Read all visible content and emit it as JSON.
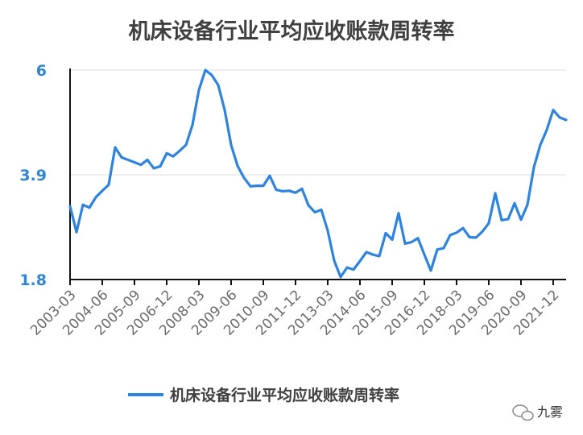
{
  "chart_data": {
    "type": "line",
    "title": "机床设备行业平均应收账款周转率",
    "xlabel": "",
    "ylabel": "",
    "ylim": [
      1.8,
      6.0
    ],
    "yticks": [
      "1.8",
      "3.9",
      "6"
    ],
    "grid": true,
    "legend_position": "bottom",
    "categories": [
      "2003-03",
      "2003-06",
      "2003-09",
      "2003-12",
      "2004-03",
      "2004-06",
      "2004-09",
      "2004-12",
      "2005-03",
      "2005-06",
      "2005-09",
      "2005-12",
      "2006-03",
      "2006-06",
      "2006-09",
      "2006-12",
      "2007-03",
      "2007-06",
      "2007-09",
      "2007-12",
      "2008-03",
      "2008-06",
      "2008-09",
      "2008-12",
      "2009-03",
      "2009-06",
      "2009-09",
      "2009-12",
      "2010-03",
      "2010-06",
      "2010-09",
      "2010-12",
      "2011-03",
      "2011-06",
      "2011-09",
      "2011-12",
      "2012-03",
      "2012-06",
      "2012-09",
      "2012-12",
      "2013-03",
      "2013-06",
      "2013-09",
      "2013-12",
      "2014-03",
      "2014-06",
      "2014-09",
      "2014-12",
      "2015-03",
      "2015-06",
      "2015-09",
      "2015-12",
      "2016-03",
      "2016-06",
      "2016-09",
      "2016-12",
      "2017-03",
      "2017-06",
      "2017-09",
      "2017-12",
      "2018-03",
      "2018-06",
      "2018-09",
      "2018-12",
      "2019-03",
      "2019-06",
      "2019-09",
      "2019-12",
      "2020-03",
      "2020-06",
      "2020-09",
      "2020-12",
      "2021-03",
      "2021-06",
      "2021-09",
      "2021-12",
      "2022-03",
      "2022-06"
    ],
    "xticks": [
      "2003-03",
      "2004-06",
      "2005-09",
      "2006-12",
      "2008-03",
      "2009-06",
      "2010-09",
      "2011-12",
      "2013-03",
      "2014-06",
      "2015-09",
      "2016-12",
      "2018-03",
      "2019-06",
      "2020-09",
      "2021-12"
    ],
    "series": [
      {
        "name": "机床设备行业平均应收账款周转率",
        "color": "#2d83df",
        "values": [
          3.27,
          2.75,
          3.3,
          3.24,
          3.45,
          3.58,
          3.7,
          4.45,
          4.25,
          4.2,
          4.15,
          4.1,
          4.2,
          4.03,
          4.07,
          4.33,
          4.27,
          4.38,
          4.5,
          4.9,
          5.6,
          6.0,
          5.9,
          5.7,
          5.2,
          4.5,
          4.08,
          3.84,
          3.67,
          3.68,
          3.68,
          3.88,
          3.6,
          3.57,
          3.58,
          3.54,
          3.62,
          3.29,
          3.15,
          3.2,
          2.78,
          2.18,
          1.85,
          2.04,
          2.0,
          2.17,
          2.35,
          2.3,
          2.27,
          2.73,
          2.6,
          3.13,
          2.52,
          2.55,
          2.63,
          2.3,
          1.98,
          2.4,
          2.43,
          2.69,
          2.74,
          2.83,
          2.65,
          2.64,
          2.76,
          2.93,
          3.53,
          2.99,
          3.01,
          3.33,
          3.0,
          3.3,
          4.05,
          4.5,
          4.8,
          5.2,
          5.05,
          5.0
        ]
      }
    ]
  },
  "watermark": {
    "text": "九雾"
  }
}
